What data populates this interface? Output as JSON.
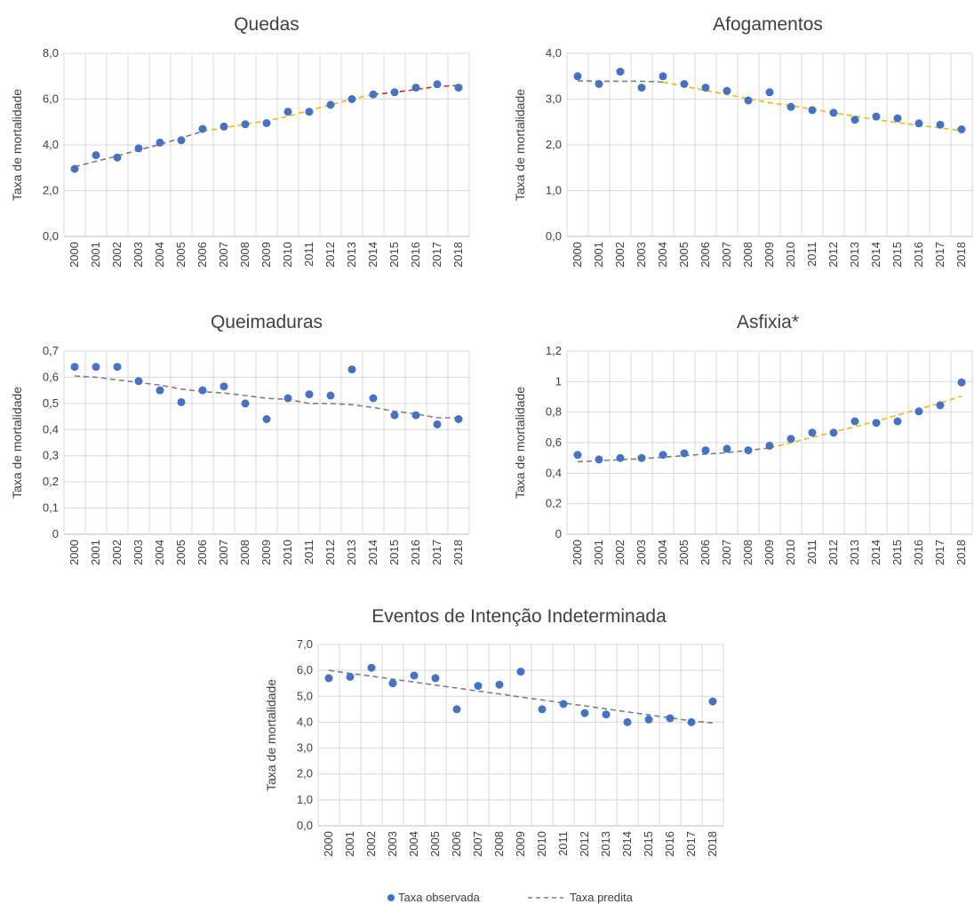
{
  "legend": {
    "observed_label": "Taxa observada",
    "predicted_label": "Taxa predita"
  },
  "colors": {
    "observed": "#4472c4",
    "trend_gray": "#7f7f7f",
    "trend_orange": "#f5b800",
    "trend_red": "#d62728",
    "grid": "#d9d9d9"
  },
  "chart_data": [
    {
      "type": "scatter",
      "title": "Quedas",
      "ylabel": "Taxa de mortalidade",
      "xlabel": "",
      "x": [
        "2000",
        "2001",
        "2002",
        "2003",
        "2004",
        "2005",
        "2006",
        "2007",
        "2008",
        "2009",
        "2010",
        "2011",
        "2012",
        "2013",
        "2014",
        "2015",
        "2016",
        "2017",
        "2018"
      ],
      "yticks": [
        "0,0",
        "2,0",
        "4,0",
        "6,0",
        "8,0"
      ],
      "ylim": [
        0,
        8
      ],
      "grid": true,
      "observed": [
        2.95,
        3.55,
        3.45,
        3.85,
        4.1,
        4.2,
        4.7,
        4.8,
        4.9,
        4.95,
        5.45,
        5.45,
        5.75,
        6.0,
        6.2,
        6.3,
        6.5,
        6.65,
        6.5
      ],
      "predicted": [
        {
          "color": "#7f7f7f",
          "x": [
            "2000",
            "2001",
            "2002",
            "2003",
            "2004",
            "2005",
            "2006"
          ],
          "y": [
            3.05,
            3.28,
            3.52,
            3.78,
            4.02,
            4.3,
            4.6
          ]
        },
        {
          "color": "#f5b800",
          "x": [
            "2006",
            "2007",
            "2008",
            "2009",
            "2010",
            "2011",
            "2012",
            "2013",
            "2014"
          ],
          "y": [
            4.6,
            4.75,
            4.9,
            5.05,
            5.25,
            5.5,
            5.75,
            6.0,
            6.2
          ]
        },
        {
          "color": "#d62728",
          "x": [
            "2014",
            "2015",
            "2016",
            "2017",
            "2018"
          ],
          "y": [
            6.2,
            6.3,
            6.42,
            6.55,
            6.6
          ]
        }
      ]
    },
    {
      "type": "scatter",
      "title": "Afogamentos",
      "ylabel": "Taxa de mortalidade",
      "xlabel": "",
      "x": [
        "2000",
        "2001",
        "2002",
        "2003",
        "2004",
        "2005",
        "2006",
        "2007",
        "2008",
        "2009",
        "2010",
        "2011",
        "2012",
        "2013",
        "2014",
        "2015",
        "2016",
        "2017",
        "2018"
      ],
      "yticks": [
        "0,0",
        "1,0",
        "2,0",
        "3,0",
        "4,0"
      ],
      "ylim": [
        0,
        4
      ],
      "grid": true,
      "observed": [
        3.5,
        3.33,
        3.6,
        3.25,
        3.5,
        3.33,
        3.25,
        3.18,
        2.97,
        3.15,
        2.83,
        2.76,
        2.7,
        2.55,
        2.62,
        2.58,
        2.47,
        2.44,
        2.34
      ],
      "predicted": [
        {
          "color": "#7f7f7f",
          "x": [
            "2000",
            "2001",
            "2002",
            "2003",
            "2004"
          ],
          "y": [
            3.4,
            3.39,
            3.39,
            3.39,
            3.37
          ]
        },
        {
          "color": "#f5b800",
          "x": [
            "2004",
            "2005",
            "2006",
            "2007",
            "2008",
            "2009",
            "2010",
            "2011",
            "2012",
            "2013",
            "2014",
            "2015",
            "2016",
            "2017",
            "2018"
          ],
          "y": [
            3.37,
            3.28,
            3.19,
            3.1,
            3.01,
            2.92,
            2.86,
            2.78,
            2.7,
            2.63,
            2.55,
            2.49,
            2.43,
            2.37,
            2.31
          ]
        }
      ]
    },
    {
      "type": "scatter",
      "title": "Queimaduras",
      "ylabel": "Taxa de mortalidade",
      "xlabel": "",
      "x": [
        "2000",
        "2001",
        "2002",
        "2003",
        "2004",
        "2005",
        "2006",
        "2007",
        "2008",
        "2009",
        "2010",
        "2011",
        "2012",
        "2013",
        "2014",
        "2015",
        "2016",
        "2017",
        "2018"
      ],
      "yticks": [
        "0",
        "0,1",
        "0,2",
        "0,3",
        "0,4",
        "0,5",
        "0,6",
        "0,7"
      ],
      "ylim": [
        0,
        0.7
      ],
      "grid": true,
      "observed": [
        0.64,
        0.64,
        0.64,
        0.585,
        0.55,
        0.505,
        0.55,
        0.565,
        0.5,
        0.44,
        0.52,
        0.535,
        0.53,
        0.63,
        0.52,
        0.455,
        0.455,
        0.42,
        0.44
      ],
      "predicted": [
        {
          "color": "#7f7f7f",
          "x": [
            "2000",
            "2001",
            "2002",
            "2003",
            "2004",
            "2005",
            "2006",
            "2007",
            "2008",
            "2009",
            "2010",
            "2011",
            "2012",
            "2013",
            "2014",
            "2015",
            "2016",
            "2017",
            "2018"
          ],
          "y": [
            0.605,
            0.6,
            0.59,
            0.58,
            0.57,
            0.555,
            0.545,
            0.54,
            0.53,
            0.52,
            0.515,
            0.5,
            0.5,
            0.495,
            0.485,
            0.47,
            0.46,
            0.445,
            0.445
          ]
        }
      ]
    },
    {
      "type": "scatter",
      "title": "Asfixia*",
      "ylabel": "Taxa de mortalidade",
      "xlabel": "",
      "x": [
        "2000",
        "2001",
        "2002",
        "2003",
        "2004",
        "2005",
        "2006",
        "2007",
        "2008",
        "2009",
        "2010",
        "2011",
        "2012",
        "2013",
        "2014",
        "2015",
        "2016",
        "2017",
        "2018"
      ],
      "yticks": [
        "0",
        "0,2",
        "0,4",
        "0,6",
        "0,8",
        "1",
        "1,2"
      ],
      "ylim": [
        0,
        1.2
      ],
      "grid": true,
      "observed": [
        0.52,
        0.49,
        0.5,
        0.5,
        0.52,
        0.53,
        0.55,
        0.56,
        0.55,
        0.58,
        0.625,
        0.665,
        0.665,
        0.74,
        0.73,
        0.74,
        0.805,
        0.845,
        0.995
      ],
      "predicted": [
        {
          "color": "#7f7f7f",
          "x": [
            "2000",
            "2001",
            "2002",
            "2003",
            "2004",
            "2005",
            "2006",
            "2007",
            "2008",
            "2009"
          ],
          "y": [
            0.475,
            0.482,
            0.488,
            0.495,
            0.505,
            0.515,
            0.525,
            0.535,
            0.55,
            0.565
          ]
        },
        {
          "color": "#f5b800",
          "x": [
            "2009",
            "2010",
            "2011",
            "2012",
            "2013",
            "2014",
            "2015",
            "2016",
            "2017",
            "2018"
          ],
          "y": [
            0.565,
            0.6,
            0.635,
            0.67,
            0.705,
            0.74,
            0.78,
            0.82,
            0.86,
            0.905
          ]
        }
      ]
    },
    {
      "type": "scatter",
      "title": "Eventos de Intenção Indeterminada",
      "ylabel": "Taxa de mortalidade",
      "xlabel": "",
      "x": [
        "2000",
        "2001",
        "2002",
        "2003",
        "2004",
        "2005",
        "2006",
        "2007",
        "2008",
        "2009",
        "2010",
        "2011",
        "2012",
        "2013",
        "2014",
        "2015",
        "2016",
        "2017",
        "2018"
      ],
      "yticks": [
        "0,0",
        "1,0",
        "2,0",
        "3,0",
        "4,0",
        "5,0",
        "6,0",
        "7,0"
      ],
      "ylim": [
        0,
        7
      ],
      "grid": true,
      "observed": [
        5.7,
        5.75,
        6.1,
        5.5,
        5.8,
        5.7,
        4.5,
        5.4,
        5.45,
        5.95,
        4.5,
        4.7,
        4.35,
        4.3,
        4.0,
        4.1,
        4.15,
        4.0,
        4.8
      ],
      "predicted": [
        {
          "color": "#7f7f7f",
          "x": [
            "2000",
            "2001",
            "2002",
            "2003",
            "2004",
            "2005",
            "2006",
            "2007",
            "2008",
            "2009",
            "2010",
            "2011",
            "2012",
            "2013",
            "2014",
            "2015",
            "2016",
            "2017",
            "2018"
          ],
          "y": [
            6.0,
            5.88,
            5.78,
            5.66,
            5.55,
            5.43,
            5.32,
            5.2,
            5.09,
            4.97,
            4.86,
            4.74,
            4.63,
            4.51,
            4.4,
            4.28,
            4.17,
            4.05,
            3.97
          ]
        }
      ]
    }
  ]
}
